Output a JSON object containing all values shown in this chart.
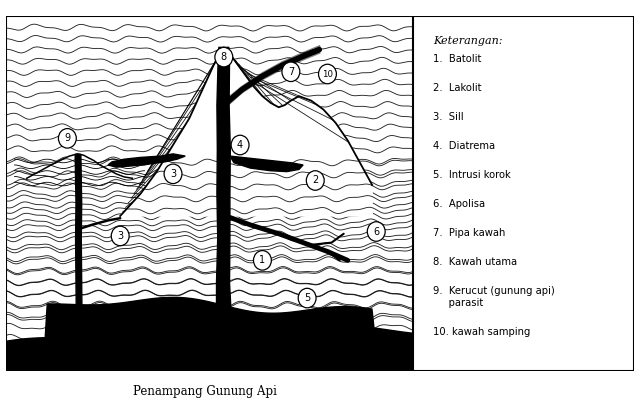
{
  "title": "Penampang Gunung Api",
  "legend_title": "Keterangan:",
  "legend_items": [
    "1.   Batolit",
    "2.   Lakolit",
    "3.   Sill",
    "4.   Diatrema",
    "5.   Intrusi korok",
    "6.   Apolisa",
    "7.   Pipa kawah",
    "8.   Kawah utama",
    "9.   Kerucut (gunung api) parasit",
    "10. kawah samping"
  ],
  "bg_color": "#ffffff",
  "lc": "#000000"
}
